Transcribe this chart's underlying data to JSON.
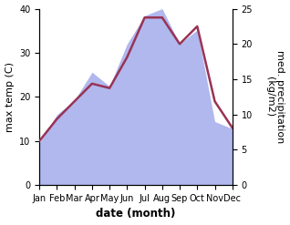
{
  "months": [
    "Jan",
    "Feb",
    "Mar",
    "Apr",
    "May",
    "Jun",
    "Jul",
    "Aug",
    "Sep",
    "Oct",
    "Nov",
    "Dec"
  ],
  "max_temp": [
    10,
    15,
    19,
    23,
    22,
    29,
    38,
    38,
    32,
    36,
    19,
    13
  ],
  "precipitation": [
    6,
    10,
    12,
    16,
    14,
    20,
    24,
    25,
    20,
    22,
    9,
    8
  ],
  "temp_color": "#993355",
  "precip_fill_color": "#b0b8ee",
  "temp_ylim": [
    0,
    40
  ],
  "precip_ylim": [
    0,
    25
  ],
  "temp_yticks": [
    0,
    10,
    20,
    30,
    40
  ],
  "precip_yticks": [
    0,
    5,
    10,
    15,
    20,
    25
  ],
  "xlabel": "date (month)",
  "ylabel_left": "max temp (C)",
  "ylabel_right": "med. precipitation\n(kg/m2)",
  "background_color": "#ffffff",
  "xlabel_fontsize": 8.5,
  "ylabel_fontsize": 8,
  "tick_fontsize": 7
}
